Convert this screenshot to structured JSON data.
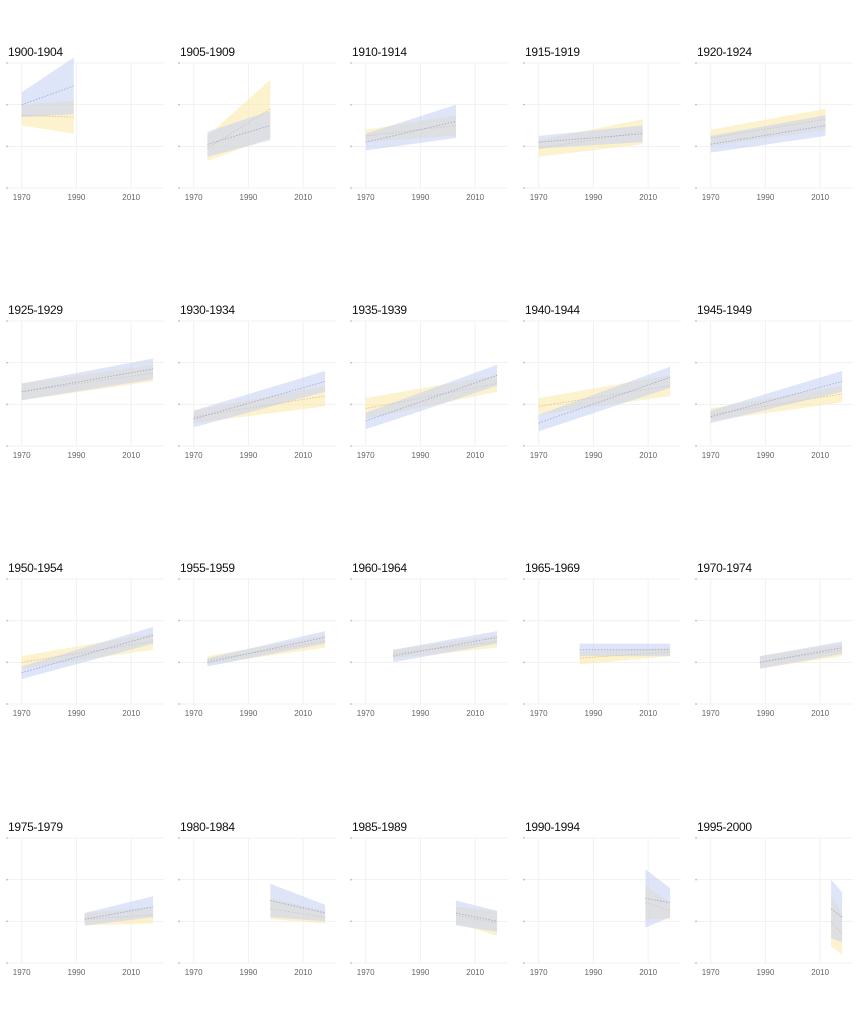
{
  "chart_data": {
    "type": "line",
    "x_ticks": [
      1970,
      1990,
      2010
    ],
    "xlim": [
      1965,
      2022
    ],
    "ylim": [
      0,
      3
    ],
    "y_gridlines": [
      0,
      1,
      2,
      3
    ],
    "grid": true,
    "colors": {
      "series_a": "#c5cff2",
      "series_a_line": "#9aa6d8",
      "series_b": "#fbe8a6",
      "series_b_line": "#dcc27a",
      "overlap": "#dcdccc"
    },
    "panels": [
      {
        "title": "1900-1904",
        "a": {
          "x": [
            1970,
            1989
          ],
          "mid": [
            2.0,
            2.45
          ],
          "half": [
            0.3,
            0.68
          ]
        },
        "b": {
          "x": [
            1970,
            1989
          ],
          "mid": [
            1.75,
            1.7
          ],
          "half": [
            0.25,
            0.4
          ]
        }
      },
      {
        "title": "1905-1909",
        "a": {
          "x": [
            1975,
            1998
          ],
          "mid": [
            1.05,
            1.5
          ],
          "half": [
            0.3,
            0.35
          ]
        },
        "b": {
          "x": [
            1975,
            1998
          ],
          "mid": [
            0.95,
            1.9
          ],
          "half": [
            0.3,
            0.7
          ]
        }
      },
      {
        "title": "1910-1914",
        "a": {
          "x": [
            1970,
            2003
          ],
          "mid": [
            1.1,
            1.6
          ],
          "half": [
            0.2,
            0.4
          ]
        },
        "b": {
          "x": [
            1970,
            2003
          ],
          "mid": [
            1.25,
            1.5
          ],
          "half": [
            0.15,
            0.25
          ]
        }
      },
      {
        "title": "1915-1919",
        "a": {
          "x": [
            1970,
            2008
          ],
          "mid": [
            1.1,
            1.3
          ],
          "half": [
            0.15,
            0.2
          ]
        },
        "b": {
          "x": [
            1970,
            2008
          ],
          "mid": [
            0.95,
            1.35
          ],
          "half": [
            0.2,
            0.3
          ]
        }
      },
      {
        "title": "1920-1924",
        "a": {
          "x": [
            1970,
            2012
          ],
          "mid": [
            1.05,
            1.5
          ],
          "half": [
            0.2,
            0.25
          ]
        },
        "b": {
          "x": [
            1970,
            2012
          ],
          "mid": [
            1.2,
            1.65
          ],
          "half": [
            0.2,
            0.25
          ]
        }
      },
      {
        "title": "1925-1929",
        "a": {
          "x": [
            1970,
            2018
          ],
          "mid": [
            1.3,
            1.85
          ],
          "half": [
            0.2,
            0.25
          ]
        },
        "b": {
          "x": [
            1970,
            2018
          ],
          "mid": [
            1.3,
            1.75
          ],
          "half": [
            0.2,
            0.2
          ]
        }
      },
      {
        "title": "1930-1934",
        "a": {
          "x": [
            1970,
            2018
          ],
          "mid": [
            0.65,
            1.55
          ],
          "half": [
            0.2,
            0.25
          ]
        },
        "b": {
          "x": [
            1970,
            2018
          ],
          "mid": [
            0.7,
            1.2
          ],
          "half": [
            0.15,
            0.25
          ]
        }
      },
      {
        "title": "1935-1939",
        "a": {
          "x": [
            1970,
            2018
          ],
          "mid": [
            0.6,
            1.7
          ],
          "half": [
            0.2,
            0.25
          ]
        },
        "b": {
          "x": [
            1970,
            2018
          ],
          "mid": [
            0.9,
            1.5
          ],
          "half": [
            0.25,
            0.2
          ]
        }
      },
      {
        "title": "1940-1944",
        "a": {
          "x": [
            1970,
            2018
          ],
          "mid": [
            0.55,
            1.65
          ],
          "half": [
            0.2,
            0.25
          ]
        },
        "b": {
          "x": [
            1970,
            2018
          ],
          "mid": [
            0.95,
            1.45
          ],
          "half": [
            0.2,
            0.25
          ]
        }
      },
      {
        "title": "1945-1949",
        "a": {
          "x": [
            1970,
            2018
          ],
          "mid": [
            0.7,
            1.55
          ],
          "half": [
            0.15,
            0.25
          ]
        },
        "b": {
          "x": [
            1970,
            2018
          ],
          "mid": [
            0.75,
            1.25
          ],
          "half": [
            0.15,
            0.2
          ]
        }
      },
      {
        "title": "1950-1954",
        "a": {
          "x": [
            1970,
            2018
          ],
          "mid": [
            0.75,
            1.65
          ],
          "half": [
            0.15,
            0.2
          ]
        },
        "b": {
          "x": [
            1970,
            2018
          ],
          "mid": [
            1.0,
            1.5
          ],
          "half": [
            0.15,
            0.2
          ]
        }
      },
      {
        "title": "1955-1959",
        "a": {
          "x": [
            1975,
            2018
          ],
          "mid": [
            1.0,
            1.6
          ],
          "half": [
            0.1,
            0.15
          ]
        },
        "b": {
          "x": [
            1975,
            2018
          ],
          "mid": [
            1.05,
            1.5
          ],
          "half": [
            0.1,
            0.15
          ]
        }
      },
      {
        "title": "1960-1964",
        "a": {
          "x": [
            1980,
            2018
          ],
          "mid": [
            1.15,
            1.6
          ],
          "half": [
            0.15,
            0.15
          ]
        },
        "b": {
          "x": [
            1980,
            2018
          ],
          "mid": [
            1.2,
            1.5
          ],
          "half": [
            0.1,
            0.15
          ]
        }
      },
      {
        "title": "1965-1969",
        "a": {
          "x": [
            1985,
            2018
          ],
          "mid": [
            1.3,
            1.3
          ],
          "half": [
            0.15,
            0.15
          ]
        },
        "b": {
          "x": [
            1985,
            2018
          ],
          "mid": [
            1.1,
            1.25
          ],
          "half": [
            0.15,
            0.1
          ]
        }
      },
      {
        "title": "1970-1974",
        "a": {
          "x": [
            1988,
            2018
          ],
          "mid": [
            1.0,
            1.35
          ],
          "half": [
            0.15,
            0.15
          ]
        },
        "b": {
          "x": [
            1988,
            2018
          ],
          "mid": [
            1.0,
            1.3
          ],
          "half": [
            0.15,
            0.15
          ]
        }
      },
      {
        "title": "1975-1979",
        "a": {
          "x": [
            1993,
            2018
          ],
          "mid": [
            1.05,
            1.35
          ],
          "half": [
            0.15,
            0.25
          ]
        },
        "b": {
          "x": [
            1993,
            2018
          ],
          "mid": [
            1.05,
            1.15
          ],
          "half": [
            0.15,
            0.2
          ]
        }
      },
      {
        "title": "1980-1984",
        "a": {
          "x": [
            1998,
            2018
          ],
          "mid": [
            1.5,
            1.2
          ],
          "half": [
            0.4,
            0.2
          ]
        },
        "b": {
          "x": [
            1998,
            2018
          ],
          "mid": [
            1.3,
            1.1
          ],
          "half": [
            0.25,
            0.15
          ]
        }
      },
      {
        "title": "1985-1989",
        "a": {
          "x": [
            2003,
            2018
          ],
          "mid": [
            1.2,
            1.0
          ],
          "half": [
            0.3,
            0.25
          ]
        },
        "b": {
          "x": [
            2003,
            2018
          ],
          "mid": [
            1.15,
            0.95
          ],
          "half": [
            0.2,
            0.3
          ]
        }
      },
      {
        "title": "1990-1994",
        "a": {
          "x": [
            2009,
            2018
          ],
          "mid": [
            1.55,
            1.45
          ],
          "half": [
            0.7,
            0.35
          ]
        },
        "b": {
          "x": [
            2009,
            2018
          ],
          "mid": [
            1.45,
            1.25
          ],
          "half": [
            0.4,
            0.2
          ]
        }
      },
      {
        "title": "1995-2000",
        "a": {
          "x": [
            2014,
            2018
          ],
          "mid": [
            1.3,
            1.1
          ],
          "half": [
            0.7,
            0.6
          ]
        },
        "b": {
          "x": [
            2014,
            2018
          ],
          "mid": [
            1.0,
            0.7
          ],
          "half": [
            0.6,
            0.5
          ]
        }
      }
    ]
  }
}
